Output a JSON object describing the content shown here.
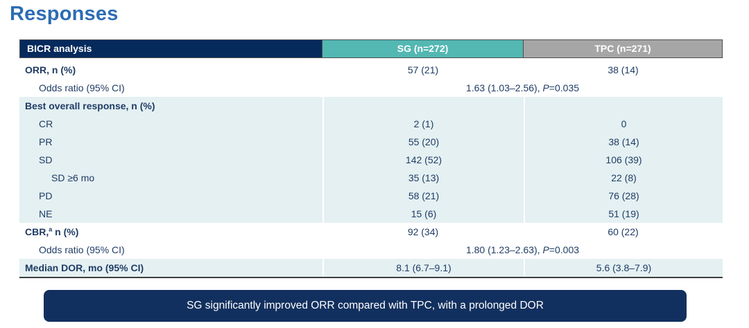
{
  "page": {
    "title": "Responses"
  },
  "colors": {
    "title_blue": "#2D6CB4",
    "header_navy": "#072A5D",
    "sg_teal": "#53B7B2",
    "tpc_gray": "#A6A6A6",
    "row_blue": "#E4F0F2",
    "text_navy": "#1F3C64",
    "banner_navy": "#12305F",
    "border_dark": "#4D4D4D",
    "bottom_border": "#3E3E3E"
  },
  "table": {
    "header": {
      "col1": "BICR analysis",
      "col2": "SG (n=272)",
      "col3": "TPC (n=271)"
    },
    "rows": [
      {
        "label": "ORR, n (%)",
        "bold": true,
        "indent": 0,
        "shade": "white",
        "sg": "57 (21)",
        "tpc": "38 (14)"
      },
      {
        "label": "Odds ratio (95% CI)",
        "bold": false,
        "indent": 1,
        "shade": "white",
        "span": {
          "pre": "1.63 (1.03–2.56), ",
          "italic": "P",
          "post": "=0.035"
        }
      },
      {
        "label": "Best overall response, n (%)",
        "bold": true,
        "indent": 0,
        "shade": "blue",
        "sg": "",
        "tpc": ""
      },
      {
        "label": "CR",
        "bold": false,
        "indent": 1,
        "shade": "blue",
        "sg": "2 (1)",
        "tpc": "0"
      },
      {
        "label": "PR",
        "bold": false,
        "indent": 1,
        "shade": "blue",
        "sg": "55 (20)",
        "tpc": "38 (14)"
      },
      {
        "label": "SD",
        "bold": false,
        "indent": 1,
        "shade": "blue",
        "sg": "142 (52)",
        "tpc": "106 (39)"
      },
      {
        "label": "SD ≥6 mo",
        "bold": false,
        "indent": 2,
        "shade": "blue",
        "sg": "35 (13)",
        "tpc": "22 (8)"
      },
      {
        "label": "PD",
        "bold": false,
        "indent": 1,
        "shade": "blue",
        "sg": "58 (21)",
        "tpc": "76 (28)"
      },
      {
        "label": "NE",
        "bold": false,
        "indent": 1,
        "shade": "blue",
        "sg": "15 (6)",
        "tpc": "51 (19)"
      },
      {
        "label": "CBR,",
        "sup": "a",
        "post": " n (%)",
        "bold": true,
        "indent": 0,
        "shade": "white",
        "sg": "92 (34)",
        "tpc": "60 (22)"
      },
      {
        "label": "Odds ratio (95% CI)",
        "bold": false,
        "indent": 1,
        "shade": "white",
        "span": {
          "pre": "1.80 (1.23–2.63), ",
          "italic": "P",
          "post": "=0.003"
        }
      },
      {
        "label": "Median DOR, mo (95% CI)",
        "bold": true,
        "indent": 0,
        "shade": "blue",
        "sg": "8.1 (6.7–9.1)",
        "tpc": "5.6 (3.8–7.9)"
      }
    ]
  },
  "chart_data": {
    "type": "table",
    "title": "Responses",
    "columns": [
      "BICR analysis",
      "SG (n=272)",
      "TPC (n=271)"
    ],
    "rows": [
      [
        "ORR, n (%)",
        "57 (21)",
        "38 (14)"
      ],
      [
        "Odds ratio (95% CI)",
        "1.63 (1.03–2.56), P=0.035",
        ""
      ],
      [
        "Best overall response, n (%)",
        "",
        ""
      ],
      [
        "CR",
        "2 (1)",
        "0"
      ],
      [
        "PR",
        "55 (20)",
        "38 (14)"
      ],
      [
        "SD",
        "142 (52)",
        "106 (39)"
      ],
      [
        "SD ≥6 mo",
        "35 (13)",
        "22 (8)"
      ],
      [
        "PD",
        "58 (21)",
        "76 (28)"
      ],
      [
        "NE",
        "15 (6)",
        "51 (19)"
      ],
      [
        "CBR,a n (%)",
        "92 (34)",
        "60 (22)"
      ],
      [
        "Odds ratio (95% CI)",
        "1.80 (1.23–2.63), P=0.003",
        ""
      ],
      [
        "Median DOR, mo (95% CI)",
        "8.1 (6.7–9.1)",
        "5.6 (3.8–7.9)"
      ]
    ]
  },
  "banner": {
    "text": "SG significantly improved ORR compared with TPC, with a prolonged DOR"
  }
}
